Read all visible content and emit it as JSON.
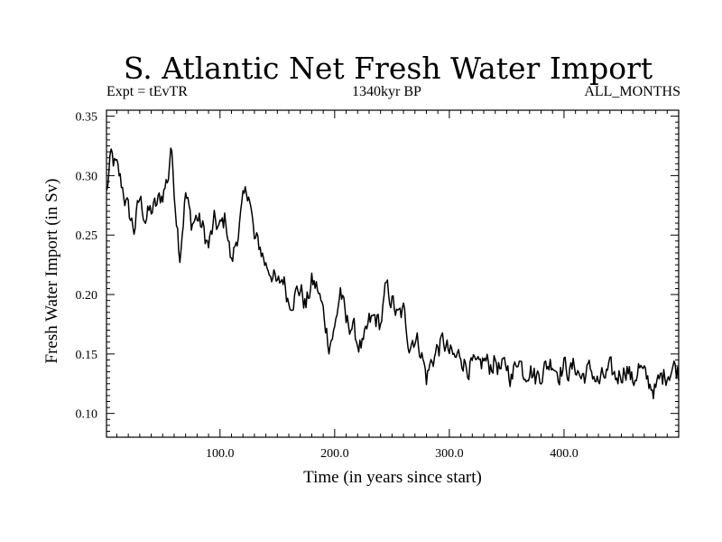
{
  "chart_data": {
    "type": "line",
    "title": "S. Atlantic Net Fresh Water Import",
    "subtitle_left": "Expt = tEvTR",
    "subtitle_center": "1340kyr BP",
    "subtitle_right": "ALL_MONTHS",
    "xlabel": "Time (in years since start)",
    "ylabel": "Fresh Water Import (in Sv)",
    "xlim": [
      1,
      500
    ],
    "ylim": [
      0.08,
      0.355
    ],
    "xticks": [
      100,
      200,
      300,
      400
    ],
    "xtick_labels": [
      "100.0",
      "200.0",
      "300.0",
      "400.0"
    ],
    "yticks": [
      0.1,
      0.15,
      0.2,
      0.25,
      0.3,
      0.35
    ],
    "ytick_labels": [
      "0.10",
      "0.15",
      "0.20",
      "0.25",
      "0.30",
      "0.35"
    ],
    "grid": false,
    "series": [
      {
        "name": "Fresh Water Import",
        "x": [
          1,
          5,
          10,
          15,
          20,
          25,
          30,
          35,
          40,
          45,
          50,
          55,
          57,
          60,
          65,
          70,
          75,
          80,
          85,
          90,
          95,
          100,
          105,
          110,
          115,
          120,
          125,
          130,
          135,
          140,
          145,
          150,
          155,
          160,
          165,
          170,
          175,
          180,
          185,
          190,
          195,
          200,
          205,
          210,
          215,
          220,
          225,
          230,
          235,
          240,
          245,
          250,
          255,
          260,
          265,
          270,
          275,
          280,
          285,
          290,
          295,
          300,
          305,
          310,
          315,
          320,
          325,
          330,
          335,
          340,
          345,
          350,
          355,
          360,
          365,
          370,
          375,
          380,
          385,
          390,
          395,
          400,
          405,
          410,
          415,
          420,
          425,
          430,
          435,
          440,
          445,
          450,
          455,
          460,
          465,
          470,
          475,
          480,
          485,
          490,
          495,
          500
        ],
        "values": [
          0.285,
          0.315,
          0.305,
          0.29,
          0.27,
          0.255,
          0.28,
          0.265,
          0.27,
          0.275,
          0.285,
          0.3,
          0.326,
          0.29,
          0.235,
          0.285,
          0.26,
          0.265,
          0.255,
          0.24,
          0.26,
          0.255,
          0.265,
          0.225,
          0.25,
          0.275,
          0.29,
          0.245,
          0.24,
          0.225,
          0.22,
          0.205,
          0.215,
          0.195,
          0.2,
          0.205,
          0.19,
          0.21,
          0.205,
          0.185,
          0.16,
          0.17,
          0.205,
          0.175,
          0.175,
          0.16,
          0.155,
          0.175,
          0.18,
          0.175,
          0.205,
          0.195,
          0.18,
          0.185,
          0.16,
          0.165,
          0.155,
          0.13,
          0.145,
          0.155,
          0.16,
          0.15,
          0.145,
          0.15,
          0.14,
          0.14,
          0.135,
          0.145,
          0.14,
          0.145,
          0.135,
          0.14,
          0.13,
          0.15,
          0.135,
          0.14,
          0.13,
          0.135,
          0.14,
          0.145,
          0.135,
          0.14,
          0.135,
          0.14,
          0.13,
          0.135,
          0.135,
          0.125,
          0.13,
          0.135,
          0.13,
          0.135,
          0.14,
          0.125,
          0.14,
          0.13,
          0.125,
          0.12,
          0.13,
          0.135,
          0.14,
          0.135
        ]
      }
    ]
  }
}
